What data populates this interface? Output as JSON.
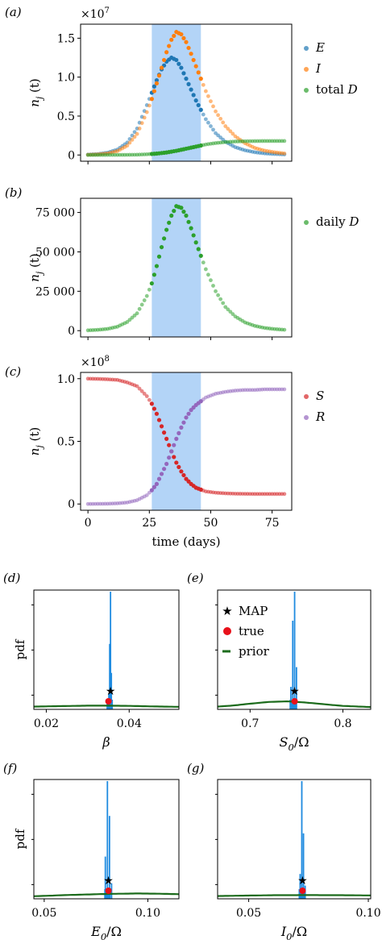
{
  "chart_data": [
    {
      "id": "a",
      "type": "scatter",
      "panel_label": "(a)",
      "ylabel": "n_j (t)",
      "scale_label": "×10",
      "scale_exp": "7",
      "xlim": [
        0,
        80
      ],
      "ylim": [
        0,
        1.6
      ],
      "yticks": [
        0,
        0.5,
        1.0,
        1.5
      ],
      "ytick_labels": [
        "0",
        "0.5",
        "1.0",
        "1.5"
      ],
      "shade": [
        26,
        46
      ],
      "shade_color": "#b3d4f7",
      "legend_position": "right",
      "series": [
        {
          "name": "E",
          "color": "#1f77b4",
          "x": [
            0,
            4,
            8,
            12,
            16,
            20,
            24,
            26,
            28,
            30,
            32,
            34,
            36,
            38,
            40,
            44,
            48,
            52,
            56,
            60,
            64,
            68,
            72,
            76,
            80
          ],
          "y": [
            0.005,
            0.012,
            0.03,
            0.07,
            0.16,
            0.34,
            0.64,
            0.8,
            0.96,
            1.1,
            1.2,
            1.25,
            1.22,
            1.12,
            0.98,
            0.7,
            0.46,
            0.28,
            0.17,
            0.1,
            0.06,
            0.035,
            0.02,
            0.012,
            0.007
          ]
        },
        {
          "name": "I",
          "color": "#ff7f0e",
          "x": [
            0,
            4,
            8,
            12,
            16,
            20,
            24,
            26,
            28,
            30,
            32,
            34,
            36,
            38,
            40,
            42,
            44,
            48,
            52,
            56,
            60,
            64,
            68,
            72,
            76,
            80
          ],
          "y": [
            0.003,
            0.008,
            0.02,
            0.05,
            0.12,
            0.27,
            0.55,
            0.72,
            0.92,
            1.12,
            1.32,
            1.48,
            1.58,
            1.55,
            1.45,
            1.3,
            1.14,
            0.82,
            0.56,
            0.37,
            0.24,
            0.15,
            0.09,
            0.055,
            0.035,
            0.02
          ]
        },
        {
          "name": "total D",
          "color": "#2ca02c",
          "x": [
            0,
            8,
            16,
            20,
            24,
            28,
            32,
            36,
            40,
            44,
            48,
            52,
            56,
            60,
            64,
            68,
            72,
            76,
            80
          ],
          "y": [
            0,
            0.002,
            0.01,
            0.02,
            0.05,
            0.1,
            0.18,
            0.3,
            0.45,
            0.6,
            0.75,
            0.85,
            0.92,
            0.96,
            0.98,
            0.99,
            1.0,
            1.0,
            1.0
          ]
        }
      ]
    },
    {
      "id": "b",
      "type": "scatter",
      "panel_label": "(b)",
      "ylabel": "n_j (t)",
      "xlim": [
        0,
        80
      ],
      "ylim": [
        0,
        80000
      ],
      "yticks": [
        0,
        25000,
        50000,
        75000
      ],
      "ytick_labels": [
        "0",
        "25 000",
        "50 000",
        "75 000"
      ],
      "shade": [
        26,
        46
      ],
      "shade_color": "#b3d4f7",
      "legend_position": "right",
      "series": [
        {
          "name": "daily D",
          "color": "#2ca02c",
          "x": [
            0,
            4,
            8,
            12,
            16,
            20,
            24,
            26,
            28,
            30,
            32,
            34,
            36,
            38,
            40,
            42,
            44,
            48,
            52,
            56,
            60,
            64,
            68,
            72,
            76,
            80
          ],
          "y": [
            200,
            500,
            1100,
            2500,
            5500,
            11000,
            22000,
            30000,
            41000,
            53000,
            64000,
            73000,
            79000,
            78000,
            73000,
            65000,
            56000,
            39000,
            25000,
            15000,
            9000,
            5200,
            3000,
            1700,
            1000,
            550
          ]
        }
      ]
    },
    {
      "id": "c",
      "type": "scatter",
      "panel_label": "(c)",
      "ylabel": "n_j (t)",
      "xlabel": "time (days)",
      "scale_label": "×10",
      "scale_exp": "8",
      "xlim": [
        0,
        80
      ],
      "ylim": [
        0,
        1.0
      ],
      "xticks": [
        0,
        25,
        50,
        75
      ],
      "xtick_labels": [
        "0",
        "25",
        "50",
        "75"
      ],
      "yticks": [
        0,
        0.5,
        1.0
      ],
      "ytick_labels": [
        "0",
        "0.5",
        "1.0"
      ],
      "shade": [
        26,
        46
      ],
      "shade_color": "#b3d4f7",
      "legend_position": "right",
      "series": [
        {
          "name": "S",
          "color": "#d62728",
          "x": [
            0,
            4,
            8,
            12,
            16,
            20,
            24,
            26,
            28,
            30,
            32,
            34,
            36,
            38,
            40,
            42,
            44,
            46,
            48,
            52,
            56,
            60,
            64,
            68,
            72,
            76,
            80
          ],
          "y": [
            1.0,
            0.998,
            0.995,
            0.99,
            0.97,
            0.94,
            0.86,
            0.8,
            0.72,
            0.62,
            0.52,
            0.42,
            0.33,
            0.26,
            0.2,
            0.16,
            0.13,
            0.115,
            0.1,
            0.09,
            0.085,
            0.082,
            0.081,
            0.08,
            0.08,
            0.08,
            0.08
          ]
        },
        {
          "name": "R",
          "color": "#9467bd",
          "x": [
            0,
            4,
            8,
            12,
            16,
            20,
            24,
            26,
            28,
            30,
            32,
            34,
            36,
            38,
            40,
            42,
            44,
            46,
            48,
            52,
            56,
            60,
            64,
            68,
            72,
            76,
            80
          ],
          "y": [
            0,
            0.001,
            0.002,
            0.005,
            0.012,
            0.03,
            0.07,
            0.11,
            0.16,
            0.24,
            0.32,
            0.42,
            0.52,
            0.61,
            0.69,
            0.75,
            0.79,
            0.82,
            0.85,
            0.88,
            0.895,
            0.905,
            0.91,
            0.91,
            0.915,
            0.915,
            0.915
          ]
        }
      ]
    },
    {
      "id": "d",
      "type": "bar",
      "panel_label": "(d)",
      "ylabel": "pdf",
      "xlabel": "β",
      "xlim": [
        0.017,
        0.052
      ],
      "xticks": [
        0.02,
        0.04
      ],
      "xtick_labels": [
        "0.02",
        "0.04"
      ],
      "hist_color": "#1f8be0",
      "hist": {
        "x": [
          0.0351,
          0.0353,
          0.0355,
          0.0357
        ],
        "h": [
          0.12,
          0.55,
          1.0,
          0.3
        ]
      },
      "map": 0.0355,
      "true": 0.035,
      "prior": {
        "x": [
          0.017,
          0.025,
          0.03,
          0.035,
          0.04,
          0.045,
          0.052
        ],
        "y": [
          0.01,
          0.015,
          0.018,
          0.018,
          0.016,
          0.012,
          0.008
        ]
      }
    },
    {
      "id": "e",
      "type": "bar",
      "panel_label": "(e)",
      "xlabel": "S_0/Ω",
      "xlim": [
        0.665,
        0.83
      ],
      "xticks": [
        0.7,
        0.8
      ],
      "xtick_labels": [
        "0.7",
        "0.8"
      ],
      "hist_color": "#1f8be0",
      "hist": {
        "x": [
          0.744,
          0.746,
          0.748,
          0.75
        ],
        "h": [
          0.18,
          0.75,
          1.0,
          0.35
        ]
      },
      "map": 0.748,
      "true": 0.748,
      "prior": {
        "x": [
          0.665,
          0.68,
          0.7,
          0.72,
          0.74,
          0.76,
          0.78,
          0.8,
          0.83
        ],
        "y": [
          0.01,
          0.018,
          0.035,
          0.05,
          0.055,
          0.045,
          0.03,
          0.016,
          0.006
        ]
      },
      "legend": [
        {
          "name": "MAP",
          "marker": "star",
          "color": "#1a1aff"
        },
        {
          "name": "true",
          "marker": "circle",
          "color": "#e8101a"
        },
        {
          "name": "prior",
          "marker": "line",
          "color": "#1b6b1b"
        }
      ]
    },
    {
      "id": "f",
      "type": "bar",
      "panel_label": "(f)",
      "ylabel": "pdf",
      "xlabel": "E_0/Ω",
      "xlim": [
        0.045,
        0.115
      ],
      "xticks": [
        0.05,
        0.1
      ],
      "xtick_labels": [
        "0.05",
        "0.10"
      ],
      "hist_color": "#1f8be0",
      "hist": {
        "x": [
          0.0795,
          0.0805,
          0.0815,
          0.0825
        ],
        "h": [
          0.35,
          1.0,
          0.7,
          0.12
        ]
      },
      "map": 0.081,
      "true": 0.081,
      "prior": {
        "x": [
          0.045,
          0.06,
          0.08,
          0.095,
          0.105,
          0.115
        ],
        "y": [
          0.008,
          0.018,
          0.028,
          0.032,
          0.03,
          0.026
        ]
      }
    },
    {
      "id": "g",
      "type": "bar",
      "panel_label": "(g)",
      "xlabel": "I_0/Ω",
      "xlim": [
        0.037,
        0.101
      ],
      "xticks": [
        0.05,
        0.1
      ],
      "xtick_labels": [
        "0.05",
        "0.10"
      ],
      "hist_color": "#1f8be0",
      "hist": {
        "x": [
          0.0715,
          0.0722,
          0.0729,
          0.0736
        ],
        "h": [
          0.2,
          1.0,
          0.55,
          0.1
        ]
      },
      "map": 0.0725,
      "true": 0.0725,
      "prior": {
        "x": [
          0.037,
          0.05,
          0.06,
          0.075,
          0.09,
          0.101
        ],
        "y": [
          0.01,
          0.014,
          0.017,
          0.018,
          0.017,
          0.015
        ]
      }
    }
  ]
}
